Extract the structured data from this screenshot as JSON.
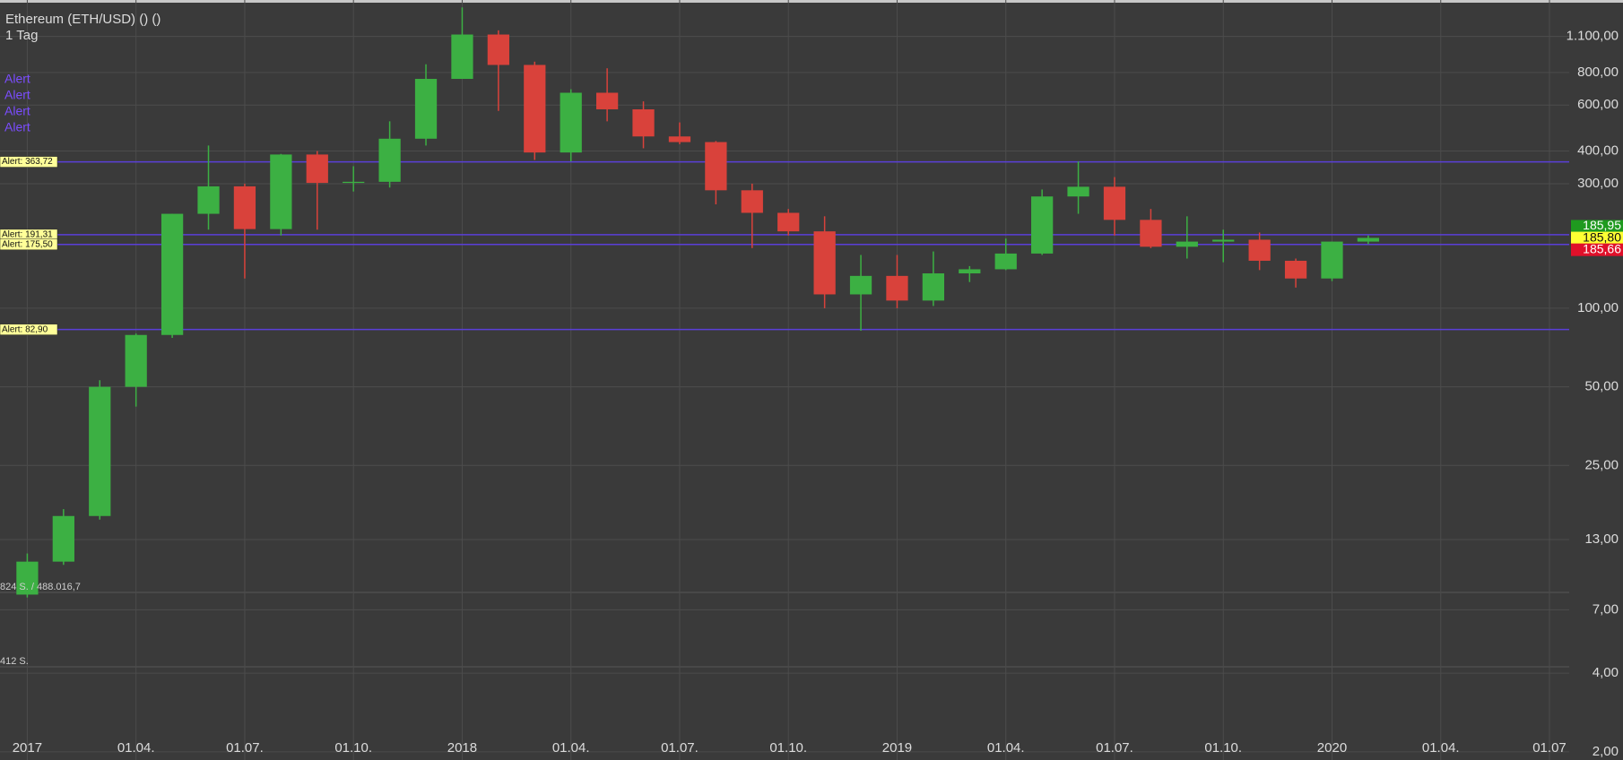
{
  "chart_data": {
    "type": "candlestick",
    "title": "Ethereum (ETH/USD) () ()",
    "subtitle": "1 Tag",
    "log_scale": true,
    "grid": true,
    "up_color": "#3cb043",
    "down_color": "#d9423b",
    "x": [
      "2017-01",
      "2017-02",
      "2017-03",
      "2017-04",
      "2017-05",
      "2017-06",
      "2017-07",
      "2017-08",
      "2017-09",
      "2017-10",
      "2017-11",
      "2017-12",
      "2018-01",
      "2018-02",
      "2018-03",
      "2018-04",
      "2018-05",
      "2018-06",
      "2018-07",
      "2018-08",
      "2018-09",
      "2018-10",
      "2018-11",
      "2018-12",
      "2019-01",
      "2019-02",
      "2019-03",
      "2019-04",
      "2019-05",
      "2019-06",
      "2019-07",
      "2019-08",
      "2019-09",
      "2019-10",
      "2019-11",
      "2019-12",
      "2020-01",
      "2020-02"
    ],
    "open": [
      8,
      10.7,
      16,
      50,
      79,
      230,
      293,
      201,
      388,
      302,
      305,
      446,
      756,
      1118,
      855,
      395,
      669,
      578,
      455,
      433,
      283,
      232,
      197,
      113,
      133,
      107,
      136,
      141,
      162,
      268,
      292,
      218,
      172,
      180,
      183,
      152,
      130,
      180
    ],
    "high": [
      11.5,
      17,
      53,
      80,
      230,
      420,
      300,
      390,
      400,
      350,
      520,
      860,
      1420,
      1160,
      880,
      690,
      830,
      620,
      515,
      437,
      300,
      240,
      225,
      160,
      160,
      165,
      145,
      185,
      285,
      365,
      318,
      240,
      225,
      200,
      195,
      155,
      180,
      190
    ],
    "low": [
      7.8,
      10.4,
      15.5,
      42,
      77,
      200,
      130,
      190,
      200,
      280,
      290,
      420,
      760,
      570,
      370,
      365,
      520,
      410,
      425,
      250,
      170,
      190,
      100,
      82,
      100,
      102,
      126,
      140,
      160,
      230,
      190,
      170,
      155,
      150,
      140,
      120,
      127,
      176
    ],
    "close": [
      10.7,
      16,
      50,
      79,
      230,
      293,
      201,
      388,
      302,
      305,
      446,
      756,
      1118,
      855,
      395,
      669,
      578,
      455,
      433,
      283,
      232,
      197,
      113,
      133,
      107,
      136,
      141,
      162,
      268,
      292,
      218,
      172,
      180,
      183,
      152,
      130,
      180,
      186
    ],
    "xlim": [
      "2016-12",
      "2020-07"
    ],
    "xticks": [
      {
        "value": "2017-01",
        "label": "2017"
      },
      {
        "value": "2017-04",
        "label": "01.04."
      },
      {
        "value": "2017-07",
        "label": "01.07."
      },
      {
        "value": "2017-10",
        "label": "01.10."
      },
      {
        "value": "2018-01",
        "label": "2018"
      },
      {
        "value": "2018-04",
        "label": "01.04."
      },
      {
        "value": "2018-07",
        "label": "01.07."
      },
      {
        "value": "2018-10",
        "label": "01.10."
      },
      {
        "value": "2019-01",
        "label": "2019"
      },
      {
        "value": "2019-04",
        "label": "01.04."
      },
      {
        "value": "2019-07",
        "label": "01.07."
      },
      {
        "value": "2019-10",
        "label": "01.10."
      },
      {
        "value": "2020-01",
        "label": "2020"
      },
      {
        "value": "2020-04",
        "label": "01.04."
      },
      {
        "value": "2020-07",
        "label": "01.07"
      }
    ],
    "ylim": [
      1.86,
      1516
    ],
    "yticks": [
      {
        "value": 1100,
        "label": "1.100,00"
      },
      {
        "value": 800,
        "label": "800,00"
      },
      {
        "value": 600,
        "label": "600,00"
      },
      {
        "value": 400,
        "label": "400,00"
      },
      {
        "value": 300,
        "label": "300,00"
      },
      {
        "value": 100,
        "label": "100,00"
      },
      {
        "value": 50,
        "label": "50,00"
      },
      {
        "value": 25,
        "label": "25,00"
      },
      {
        "value": 13,
        "label": "13,00"
      },
      {
        "value": 7,
        "label": "7,00"
      },
      {
        "value": 4,
        "label": "4,00"
      },
      {
        "value": 2,
        "label": "2,00"
      }
    ],
    "alert_color": "#5a3fd8",
    "alert_markers": [
      "Alert",
      "Alert",
      "Alert",
      "Alert"
    ],
    "alerts": [
      {
        "value": 363.72,
        "label": "Alert: 363,72"
      },
      {
        "value": 191.31,
        "label": "Alert: 191,31"
      },
      {
        "value": 175.5,
        "label": "Alert: 175,50"
      },
      {
        "value": 82.9,
        "label": "Alert: 82,90"
      }
    ],
    "price_labels": [
      {
        "value": 185.95,
        "label": "185,95",
        "color": "#1f9a1f"
      },
      {
        "value": 185.8,
        "label": "185,80",
        "color": "#ffff33"
      },
      {
        "value": 185.66,
        "label": "185,66",
        "color": "#e0102a"
      }
    ],
    "volume_labels": [
      "824 S. / 488.016,7",
      "412 S."
    ]
  }
}
